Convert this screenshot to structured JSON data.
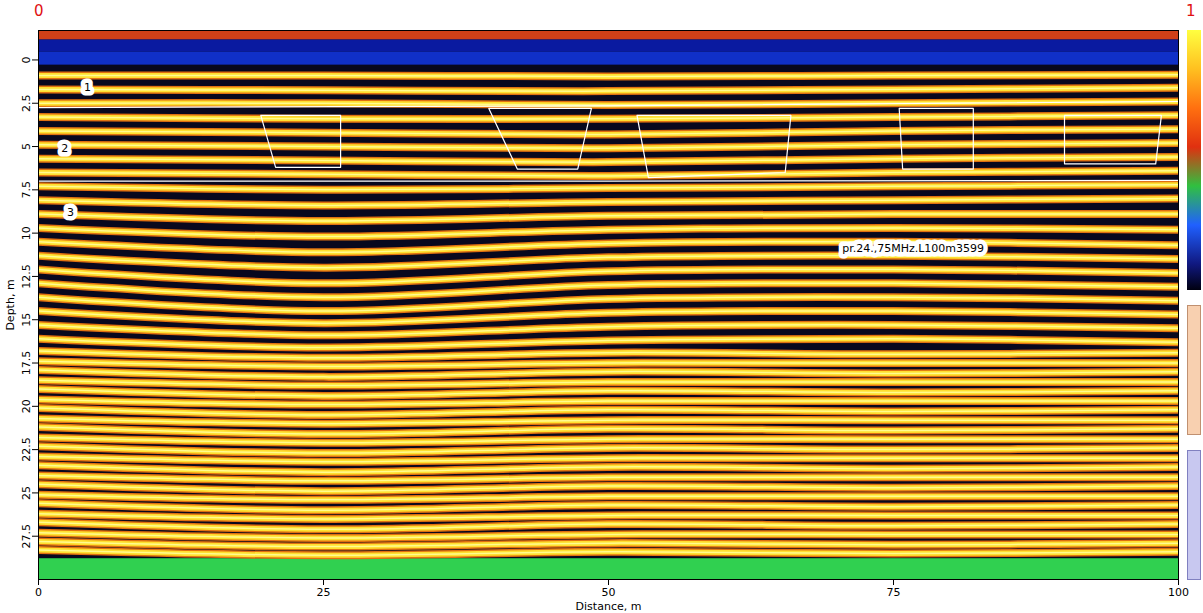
{
  "chart_data": {
    "type": "radargram",
    "x_label": "Distance, m",
    "y_label": "Depth, m",
    "xlim": [
      0,
      100
    ],
    "ylim": [
      30,
      -1.7
    ],
    "xticks": [
      0,
      25,
      50,
      75,
      100
    ],
    "yticks": [
      0,
      2.5,
      5,
      7.5,
      10,
      12.5,
      15,
      17.5,
      20,
      22.5,
      25,
      27.5
    ],
    "grid": false,
    "corner_labels": [
      "0",
      "1"
    ],
    "annotations": [
      {
        "text": "1",
        "x": 4,
        "y": 1.6
      },
      {
        "text": "2",
        "x": 2,
        "y": 5.1
      },
      {
        "text": "3",
        "x": 2.5,
        "y": 8.8
      },
      {
        "text": "pr.24.,75MHz.L100m3599",
        "x": 70.5,
        "y": 10.9
      }
    ],
    "bands": [
      {
        "from": -1.7,
        "to": -1.15,
        "color": "#d04018"
      },
      {
        "from": -1.15,
        "to": -0.45,
        "color": "#0a1aa0"
      },
      {
        "from": -0.45,
        "to": 0.3,
        "color": "#1030c8"
      },
      {
        "from": 28.8,
        "to": 30,
        "color": "#30d050"
      }
    ],
    "reflector_x": [
      0,
      25,
      50,
      75,
      100
    ],
    "reflectors": [
      [
        0.9,
        0.9,
        0.95,
        0.9,
        0.85
      ],
      [
        1.7,
        1.75,
        1.8,
        1.7,
        1.6
      ],
      [
        2.5,
        2.5,
        2.6,
        2.5,
        2.4
      ],
      [
        3.3,
        3.4,
        3.4,
        3.3,
        3.2
      ],
      [
        4.1,
        4.2,
        4.3,
        4.1,
        4.0
      ],
      [
        4.9,
        5.0,
        5.1,
        4.9,
        4.8
      ],
      [
        5.7,
        5.8,
        5.9,
        5.7,
        5.6
      ],
      [
        6.5,
        6.6,
        6.7,
        6.5,
        6.4
      ],
      [
        7.3,
        7.5,
        7.4,
        7.3,
        7.2
      ],
      [
        8.1,
        8.4,
        8.2,
        8.1,
        8.0
      ],
      [
        8.9,
        9.3,
        9.0,
        8.9,
        8.9
      ],
      [
        9.7,
        10.2,
        9.8,
        9.7,
        9.8
      ],
      [
        10.5,
        11.1,
        10.6,
        10.5,
        10.7
      ],
      [
        11.3,
        12.0,
        11.4,
        11.3,
        11.5
      ],
      [
        12.1,
        12.9,
        12.2,
        12.1,
        12.3
      ],
      [
        12.9,
        13.7,
        13.0,
        12.9,
        13.1
      ],
      [
        13.7,
        14.5,
        13.8,
        13.7,
        13.9
      ],
      [
        14.5,
        15.2,
        14.6,
        14.5,
        14.7
      ],
      [
        15.3,
        15.9,
        15.4,
        15.3,
        15.5
      ],
      [
        16.1,
        16.6,
        16.2,
        16.1,
        16.3
      ],
      [
        16.8,
        17.2,
        16.9,
        17.0,
        16.9
      ],
      [
        17.4,
        17.7,
        17.5,
        17.5,
        17.5
      ],
      [
        17.9,
        18.3,
        18.0,
        18.1,
        18.0
      ],
      [
        18.5,
        18.8,
        18.6,
        18.6,
        18.6
      ],
      [
        19.0,
        19.4,
        19.1,
        19.2,
        19.1
      ],
      [
        19.6,
        19.9,
        19.7,
        19.7,
        19.7
      ],
      [
        20.1,
        20.5,
        20.2,
        20.3,
        20.2
      ],
      [
        20.7,
        21.0,
        20.8,
        20.8,
        20.8
      ],
      [
        21.2,
        21.6,
        21.3,
        21.4,
        21.3
      ],
      [
        21.8,
        22.1,
        21.9,
        21.9,
        21.9
      ],
      [
        22.3,
        22.7,
        22.4,
        22.5,
        22.4
      ],
      [
        22.9,
        23.2,
        23.0,
        23.0,
        23.0
      ],
      [
        23.4,
        23.8,
        23.5,
        23.6,
        23.5
      ],
      [
        24.0,
        24.3,
        24.1,
        24.1,
        24.1
      ],
      [
        24.5,
        24.9,
        24.6,
        24.7,
        24.6
      ],
      [
        25.1,
        25.4,
        25.2,
        25.2,
        25.2
      ],
      [
        25.6,
        26.0,
        25.7,
        25.8,
        25.7
      ],
      [
        26.2,
        26.5,
        26.3,
        26.3,
        26.3
      ],
      [
        26.7,
        27.1,
        26.8,
        26.9,
        26.8
      ],
      [
        27.3,
        27.6,
        27.4,
        27.4,
        27.4
      ],
      [
        27.8,
        28.1,
        27.9,
        28.0,
        27.9
      ],
      [
        28.3,
        28.6,
        28.4,
        28.5,
        28.4
      ]
    ],
    "boundaries": [
      [
        [
          0,
          2.75
        ],
        [
          50,
          2.65
        ],
        [
          100,
          2.4
        ]
      ],
      [
        [
          0,
          7.0
        ],
        [
          50,
          7.0
        ],
        [
          100,
          6.95
        ]
      ]
    ],
    "zones": [
      [
        [
          19.5,
          3.2
        ],
        [
          26.5,
          3.2
        ],
        [
          26.5,
          6.2
        ],
        [
          20.8,
          6.2
        ]
      ],
      [
        [
          39.5,
          2.8
        ],
        [
          48.5,
          2.8
        ],
        [
          47.3,
          6.3
        ],
        [
          42,
          6.3
        ]
      ],
      [
        [
          52.5,
          3.2
        ],
        [
          66,
          3.2
        ],
        [
          65.5,
          6.5
        ],
        [
          53.5,
          6.8
        ]
      ],
      [
        [
          75.5,
          2.8
        ],
        [
          82,
          2.8
        ],
        [
          82,
          6.3
        ],
        [
          75.8,
          6.3
        ]
      ],
      [
        [
          90,
          3.2
        ],
        [
          98.5,
          3.2
        ],
        [
          98,
          6
        ],
        [
          90,
          6
        ]
      ]
    ]
  }
}
